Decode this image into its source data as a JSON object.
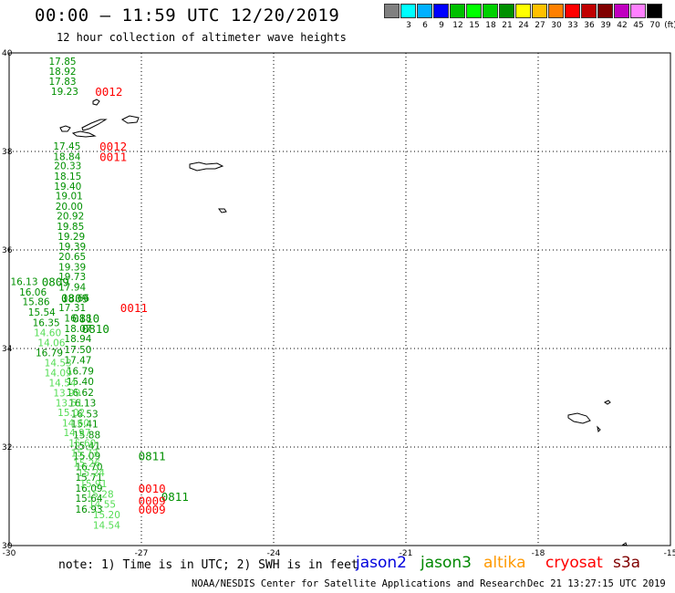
{
  "title": "00:00 – 11:59 UTC 12/20/2019",
  "subtitle": "12 hour collection of altimeter wave heights",
  "legend": {
    "unit": "(ft)",
    "bins": [
      {
        "label": "",
        "color": "#808080"
      },
      {
        "label": "3",
        "color": "#00ffff"
      },
      {
        "label": "6",
        "color": "#00b0ff"
      },
      {
        "label": "9",
        "color": "#0000ff"
      },
      {
        "label": "12",
        "color": "#00c000"
      },
      {
        "label": "15",
        "color": "#00ff00"
      },
      {
        "label": "18",
        "color": "#00d000"
      },
      {
        "label": "21",
        "color": "#009000"
      },
      {
        "label": "24",
        "color": "#ffff00"
      },
      {
        "label": "27",
        "color": "#ffc000"
      },
      {
        "label": "30",
        "color": "#ff8000"
      },
      {
        "label": "33",
        "color": "#ff0000"
      },
      {
        "label": "36",
        "color": "#c00000"
      },
      {
        "label": "39",
        "color": "#800000"
      },
      {
        "label": "42",
        "color": "#c000c0"
      },
      {
        "label": "45",
        "color": "#ff80ff"
      },
      {
        "label": "70",
        "color": "#000000"
      }
    ]
  },
  "axes": {
    "lat_labels": [
      "40",
      "38",
      "36",
      "34",
      "32",
      "30"
    ],
    "lon_labels": [
      "-30",
      "-27",
      "-24",
      "-21",
      "-18",
      "-15"
    ]
  },
  "colors": {
    "jason3": "#009000",
    "light": "#55dd55",
    "red": "#ff0000"
  },
  "observations": [
    {
      "lat": 39.83,
      "lon": -29.1,
      "v": "17.85",
      "c": "jason3"
    },
    {
      "lat": 39.63,
      "lon": -29.1,
      "v": "18.92",
      "c": "jason3"
    },
    {
      "lat": 39.43,
      "lon": -29.1,
      "v": "17.83",
      "c": "jason3"
    },
    {
      "lat": 39.22,
      "lon": -29.05,
      "v": "19.23",
      "c": "jason3"
    },
    {
      "lat": 38.11,
      "lon": -29.0,
      "v": "17.45",
      "c": "jason3"
    },
    {
      "lat": 37.9,
      "lon": -29.0,
      "v": "18.84",
      "c": "jason3"
    },
    {
      "lat": 37.71,
      "lon": -28.98,
      "v": "20.33",
      "c": "jason3"
    },
    {
      "lat": 37.5,
      "lon": -28.98,
      "v": "18.15",
      "c": "jason3"
    },
    {
      "lat": 37.3,
      "lon": -28.98,
      "v": "19.40",
      "c": "jason3"
    },
    {
      "lat": 37.1,
      "lon": -28.95,
      "v": "19.01",
      "c": "jason3"
    },
    {
      "lat": 36.89,
      "lon": -28.95,
      "v": "20.00",
      "c": "jason3"
    },
    {
      "lat": 36.69,
      "lon": -28.92,
      "v": "20.92",
      "c": "jason3"
    },
    {
      "lat": 36.48,
      "lon": -28.92,
      "v": "19.85",
      "c": "jason3"
    },
    {
      "lat": 36.28,
      "lon": -28.9,
      "v": "19.29",
      "c": "jason3"
    },
    {
      "lat": 36.07,
      "lon": -28.88,
      "v": "19.39",
      "c": "jason3"
    },
    {
      "lat": 35.87,
      "lon": -28.88,
      "v": "20.65",
      "c": "jason3"
    },
    {
      "lat": 35.66,
      "lon": -28.88,
      "v": "19.39",
      "c": "jason3"
    },
    {
      "lat": 35.46,
      "lon": -28.88,
      "v": "19.73",
      "c": "jason3"
    },
    {
      "lat": 35.25,
      "lon": -28.88,
      "v": "17.94",
      "c": "jason3"
    },
    {
      "lat": 35.03,
      "lon": -28.8,
      "v": "18.66",
      "c": "jason3"
    },
    {
      "lat": 34.83,
      "lon": -28.88,
      "v": "17.31",
      "c": "jason3"
    },
    {
      "lat": 34.62,
      "lon": -28.75,
      "v": "16.18",
      "c": "jason3"
    },
    {
      "lat": 34.41,
      "lon": -28.75,
      "v": "18.07",
      "c": "jason3"
    },
    {
      "lat": 34.2,
      "lon": -28.75,
      "v": "18.94",
      "c": "jason3"
    },
    {
      "lat": 33.98,
      "lon": -28.75,
      "v": "17.50",
      "c": "jason3"
    },
    {
      "lat": 33.77,
      "lon": -28.75,
      "v": "17.47",
      "c": "jason3"
    },
    {
      "lat": 33.55,
      "lon": -28.7,
      "v": "16.79",
      "c": "jason3"
    },
    {
      "lat": 33.33,
      "lon": -28.7,
      "v": "15.40",
      "c": "jason3"
    },
    {
      "lat": 33.11,
      "lon": -28.7,
      "v": "16.62",
      "c": "jason3"
    },
    {
      "lat": 32.9,
      "lon": -28.65,
      "v": "16.13",
      "c": "jason3"
    },
    {
      "lat": 32.68,
      "lon": -28.6,
      "v": "16.53",
      "c": "jason3"
    },
    {
      "lat": 32.47,
      "lon": -28.6,
      "v": "15.41",
      "c": "jason3"
    },
    {
      "lat": 32.25,
      "lon": -28.55,
      "v": "15.88",
      "c": "jason3"
    },
    {
      "lat": 32.03,
      "lon": -28.55,
      "v": "15.41",
      "c": "jason3"
    },
    {
      "lat": 31.82,
      "lon": -28.55,
      "v": "15.09",
      "c": "jason3"
    },
    {
      "lat": 31.6,
      "lon": -28.5,
      "v": "16.70",
      "c": "jason3"
    },
    {
      "lat": 31.39,
      "lon": -28.5,
      "v": "15.71",
      "c": "jason3"
    },
    {
      "lat": 31.17,
      "lon": -28.5,
      "v": "16.09",
      "c": "jason3"
    },
    {
      "lat": 30.96,
      "lon": -28.5,
      "v": "15.64",
      "c": "jason3"
    },
    {
      "lat": 30.74,
      "lon": -28.5,
      "v": "16.93",
      "c": "jason3"
    },
    {
      "lat": 35.36,
      "lon": -29.97,
      "v": "16.13",
      "c": "jason3"
    },
    {
      "lat": 35.15,
      "lon": -29.77,
      "v": "16.06",
      "c": "jason3"
    },
    {
      "lat": 34.95,
      "lon": -29.7,
      "v": "15.86",
      "c": "jason3"
    },
    {
      "lat": 34.74,
      "lon": -29.57,
      "v": "15.54",
      "c": "jason3"
    },
    {
      "lat": 34.53,
      "lon": -29.47,
      "v": "16.35",
      "c": "jason3"
    },
    {
      "lat": 34.32,
      "lon": -29.44,
      "v": "14.60",
      "c": "light"
    },
    {
      "lat": 34.12,
      "lon": -29.35,
      "v": "14.06",
      "c": "light"
    },
    {
      "lat": 33.92,
      "lon": -29.4,
      "v": "16.79",
      "c": "jason3"
    },
    {
      "lat": 33.71,
      "lon": -29.2,
      "v": "14.53",
      "c": "light"
    },
    {
      "lat": 33.51,
      "lon": -29.2,
      "v": "14.09",
      "c": "light"
    },
    {
      "lat": 33.31,
      "lon": -29.1,
      "v": "14.54",
      "c": "light"
    },
    {
      "lat": 33.1,
      "lon": -29.0,
      "v": "13.99",
      "c": "light"
    },
    {
      "lat": 32.9,
      "lon": -28.95,
      "v": "13.51",
      "c": "light"
    },
    {
      "lat": 32.7,
      "lon": -28.9,
      "v": "15.02",
      "c": "light"
    },
    {
      "lat": 32.49,
      "lon": -28.8,
      "v": "14.60",
      "c": "light"
    },
    {
      "lat": 32.3,
      "lon": -28.77,
      "v": "14.97",
      "c": "light"
    },
    {
      "lat": 32.08,
      "lon": -28.65,
      "v": "15.60",
      "c": "light"
    },
    {
      "lat": 31.88,
      "lon": -28.6,
      "v": "15.73",
      "c": "light"
    },
    {
      "lat": 31.68,
      "lon": -28.55,
      "v": "15.26",
      "c": "light"
    },
    {
      "lat": 31.48,
      "lon": -28.45,
      "v": "15.24",
      "c": "light"
    },
    {
      "lat": 31.26,
      "lon": -28.4,
      "v": "15.91",
      "c": "light"
    },
    {
      "lat": 31.05,
      "lon": -28.25,
      "v": "15.28",
      "c": "light"
    },
    {
      "lat": 30.84,
      "lon": -28.2,
      "v": "14.55",
      "c": "light"
    },
    {
      "lat": 30.63,
      "lon": -28.1,
      "v": "15.20",
      "c": "light"
    },
    {
      "lat": 30.42,
      "lon": -28.1,
      "v": "14.54",
      "c": "light"
    }
  ],
  "tags": [
    {
      "lat": 39.22,
      "lon": -28.05,
      "v": "0012",
      "c": "red"
    },
    {
      "lat": 38.11,
      "lon": -27.95,
      "v": "0012",
      "c": "red"
    },
    {
      "lat": 37.9,
      "lon": -27.95,
      "v": "0011",
      "c": "red"
    },
    {
      "lat": 35.36,
      "lon": -29.26,
      "v": "0809",
      "c": "jason3"
    },
    {
      "lat": 35.03,
      "lon": -28.82,
      "v": "0809",
      "c": "jason3"
    },
    {
      "lat": 34.83,
      "lon": -27.48,
      "v": "0011",
      "c": "red"
    },
    {
      "lat": 34.62,
      "lon": -28.57,
      "v": "0810",
      "c": "jason3"
    },
    {
      "lat": 34.41,
      "lon": -28.35,
      "v": "0810",
      "c": "jason3"
    },
    {
      "lat": 31.82,
      "lon": -27.07,
      "v": "0811",
      "c": "jason3"
    },
    {
      "lat": 31.0,
      "lon": -26.55,
      "v": "0811",
      "c": "jason3"
    },
    {
      "lat": 31.17,
      "lon": -27.07,
      "v": "0010",
      "c": "red"
    },
    {
      "lat": 30.92,
      "lon": -27.07,
      "v": "0009",
      "c": "red"
    },
    {
      "lat": 30.74,
      "lon": -27.07,
      "v": "0009",
      "c": "red"
    }
  ],
  "note": "note: 1) Time is in UTC; 2) SWH is in feet",
  "satellites": [
    {
      "name": "jason2",
      "color": "#0000dd"
    },
    {
      "name": "jason3",
      "color": "#008800"
    },
    {
      "name": "altika",
      "color": "#ff9900"
    },
    {
      "name": "cryosat",
      "color": "#ff0000"
    },
    {
      "name": "s3a",
      "color": "#800000"
    }
  ],
  "footer": {
    "center": "NOAA/NESDIS Center for Satellite Applications and Research",
    "timestamp": "Dec 21 13:27:15 UTC 2019"
  }
}
